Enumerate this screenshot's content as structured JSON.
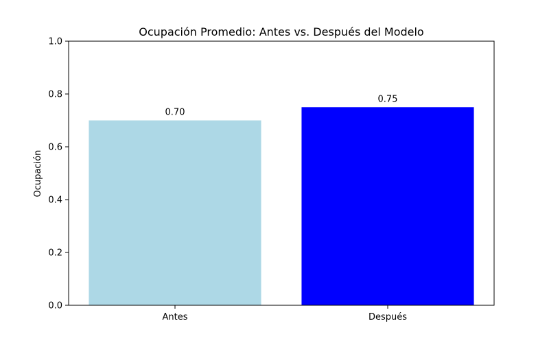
{
  "chart_data": {
    "type": "bar",
    "title": "Ocupación Promedio: Antes vs. Después del Modelo",
    "xlabel": "",
    "ylabel": "Ocupación",
    "categories": [
      "Antes",
      "Después"
    ],
    "values": [
      0.7,
      0.75
    ],
    "data_labels": [
      "0.70",
      "0.75"
    ],
    "colors": [
      "#add8e6",
      "#0000ff"
    ],
    "ylim": [
      0,
      1.0
    ],
    "yticks": [
      0.0,
      0.2,
      0.4,
      0.6,
      0.8,
      1.0
    ],
    "ytick_labels": [
      "0.0",
      "0.2",
      "0.4",
      "0.6",
      "0.8",
      "1.0"
    ],
    "grid": false,
    "legend": "none"
  }
}
